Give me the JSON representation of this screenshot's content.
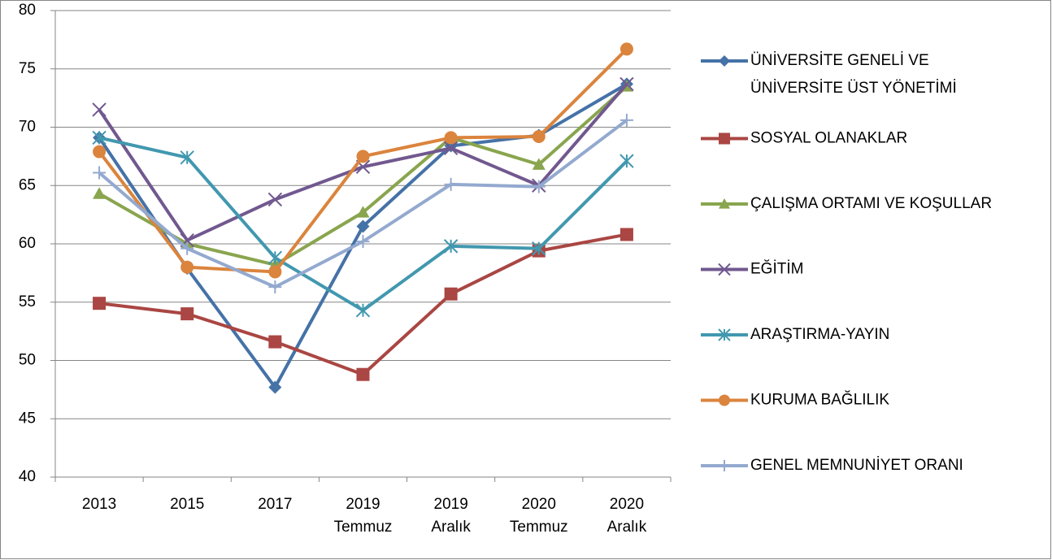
{
  "chart_data": {
    "type": "line",
    "categories": [
      "2013",
      "2015",
      "2017",
      "2019 Temmuz",
      "2019 Aralık",
      "2020 Temmuz",
      "2020 Aralık"
    ],
    "series": [
      {
        "name": "ÜNİVERSİTE GENELİ VE ÜNİVERSİTE ÜST YÖNETİMİ",
        "color": "#4572a7",
        "marker": "diamond",
        "values": [
          69.1,
          57.9,
          47.7,
          61.5,
          68.4,
          69.3,
          73.7
        ]
      },
      {
        "name": "SOSYAL OLANAKLAR",
        "color": "#aa4643",
        "marker": "square",
        "values": [
          54.9,
          54.0,
          51.6,
          48.8,
          55.7,
          59.4,
          60.8
        ]
      },
      {
        "name": "ÇALIŞMA ORTAMI VE KOŞULLAR",
        "color": "#89a54e",
        "marker": "triangle",
        "values": [
          64.3,
          60.0,
          58.2,
          62.7,
          69.1,
          66.8,
          73.5
        ]
      },
      {
        "name": "EĞİTİM",
        "color": "#71588f",
        "marker": "x",
        "values": [
          71.5,
          60.3,
          63.8,
          66.6,
          68.2,
          65.0,
          73.7
        ]
      },
      {
        "name": "ARAŞTIRMA-YAYIN",
        "color": "#4198af",
        "marker": "star",
        "values": [
          69.1,
          67.4,
          58.8,
          54.3,
          59.8,
          59.6,
          67.1
        ]
      },
      {
        "name": "KURUMA BAĞLILIK",
        "color": "#db843d",
        "marker": "circle",
        "values": [
          67.9,
          58.0,
          57.6,
          67.5,
          69.1,
          69.2,
          76.7
        ]
      },
      {
        "name": "GENEL MEMNUNİYET ORANI",
        "color": "#93a9cf",
        "marker": "plus",
        "values": [
          66.1,
          59.6,
          56.3,
          60.2,
          65.1,
          64.9,
          70.6
        ]
      }
    ],
    "ylim": [
      40,
      80
    ],
    "yticks": [
      40,
      45,
      50,
      55,
      60,
      65,
      70,
      75,
      80
    ],
    "grid": true,
    "legend": "right"
  }
}
